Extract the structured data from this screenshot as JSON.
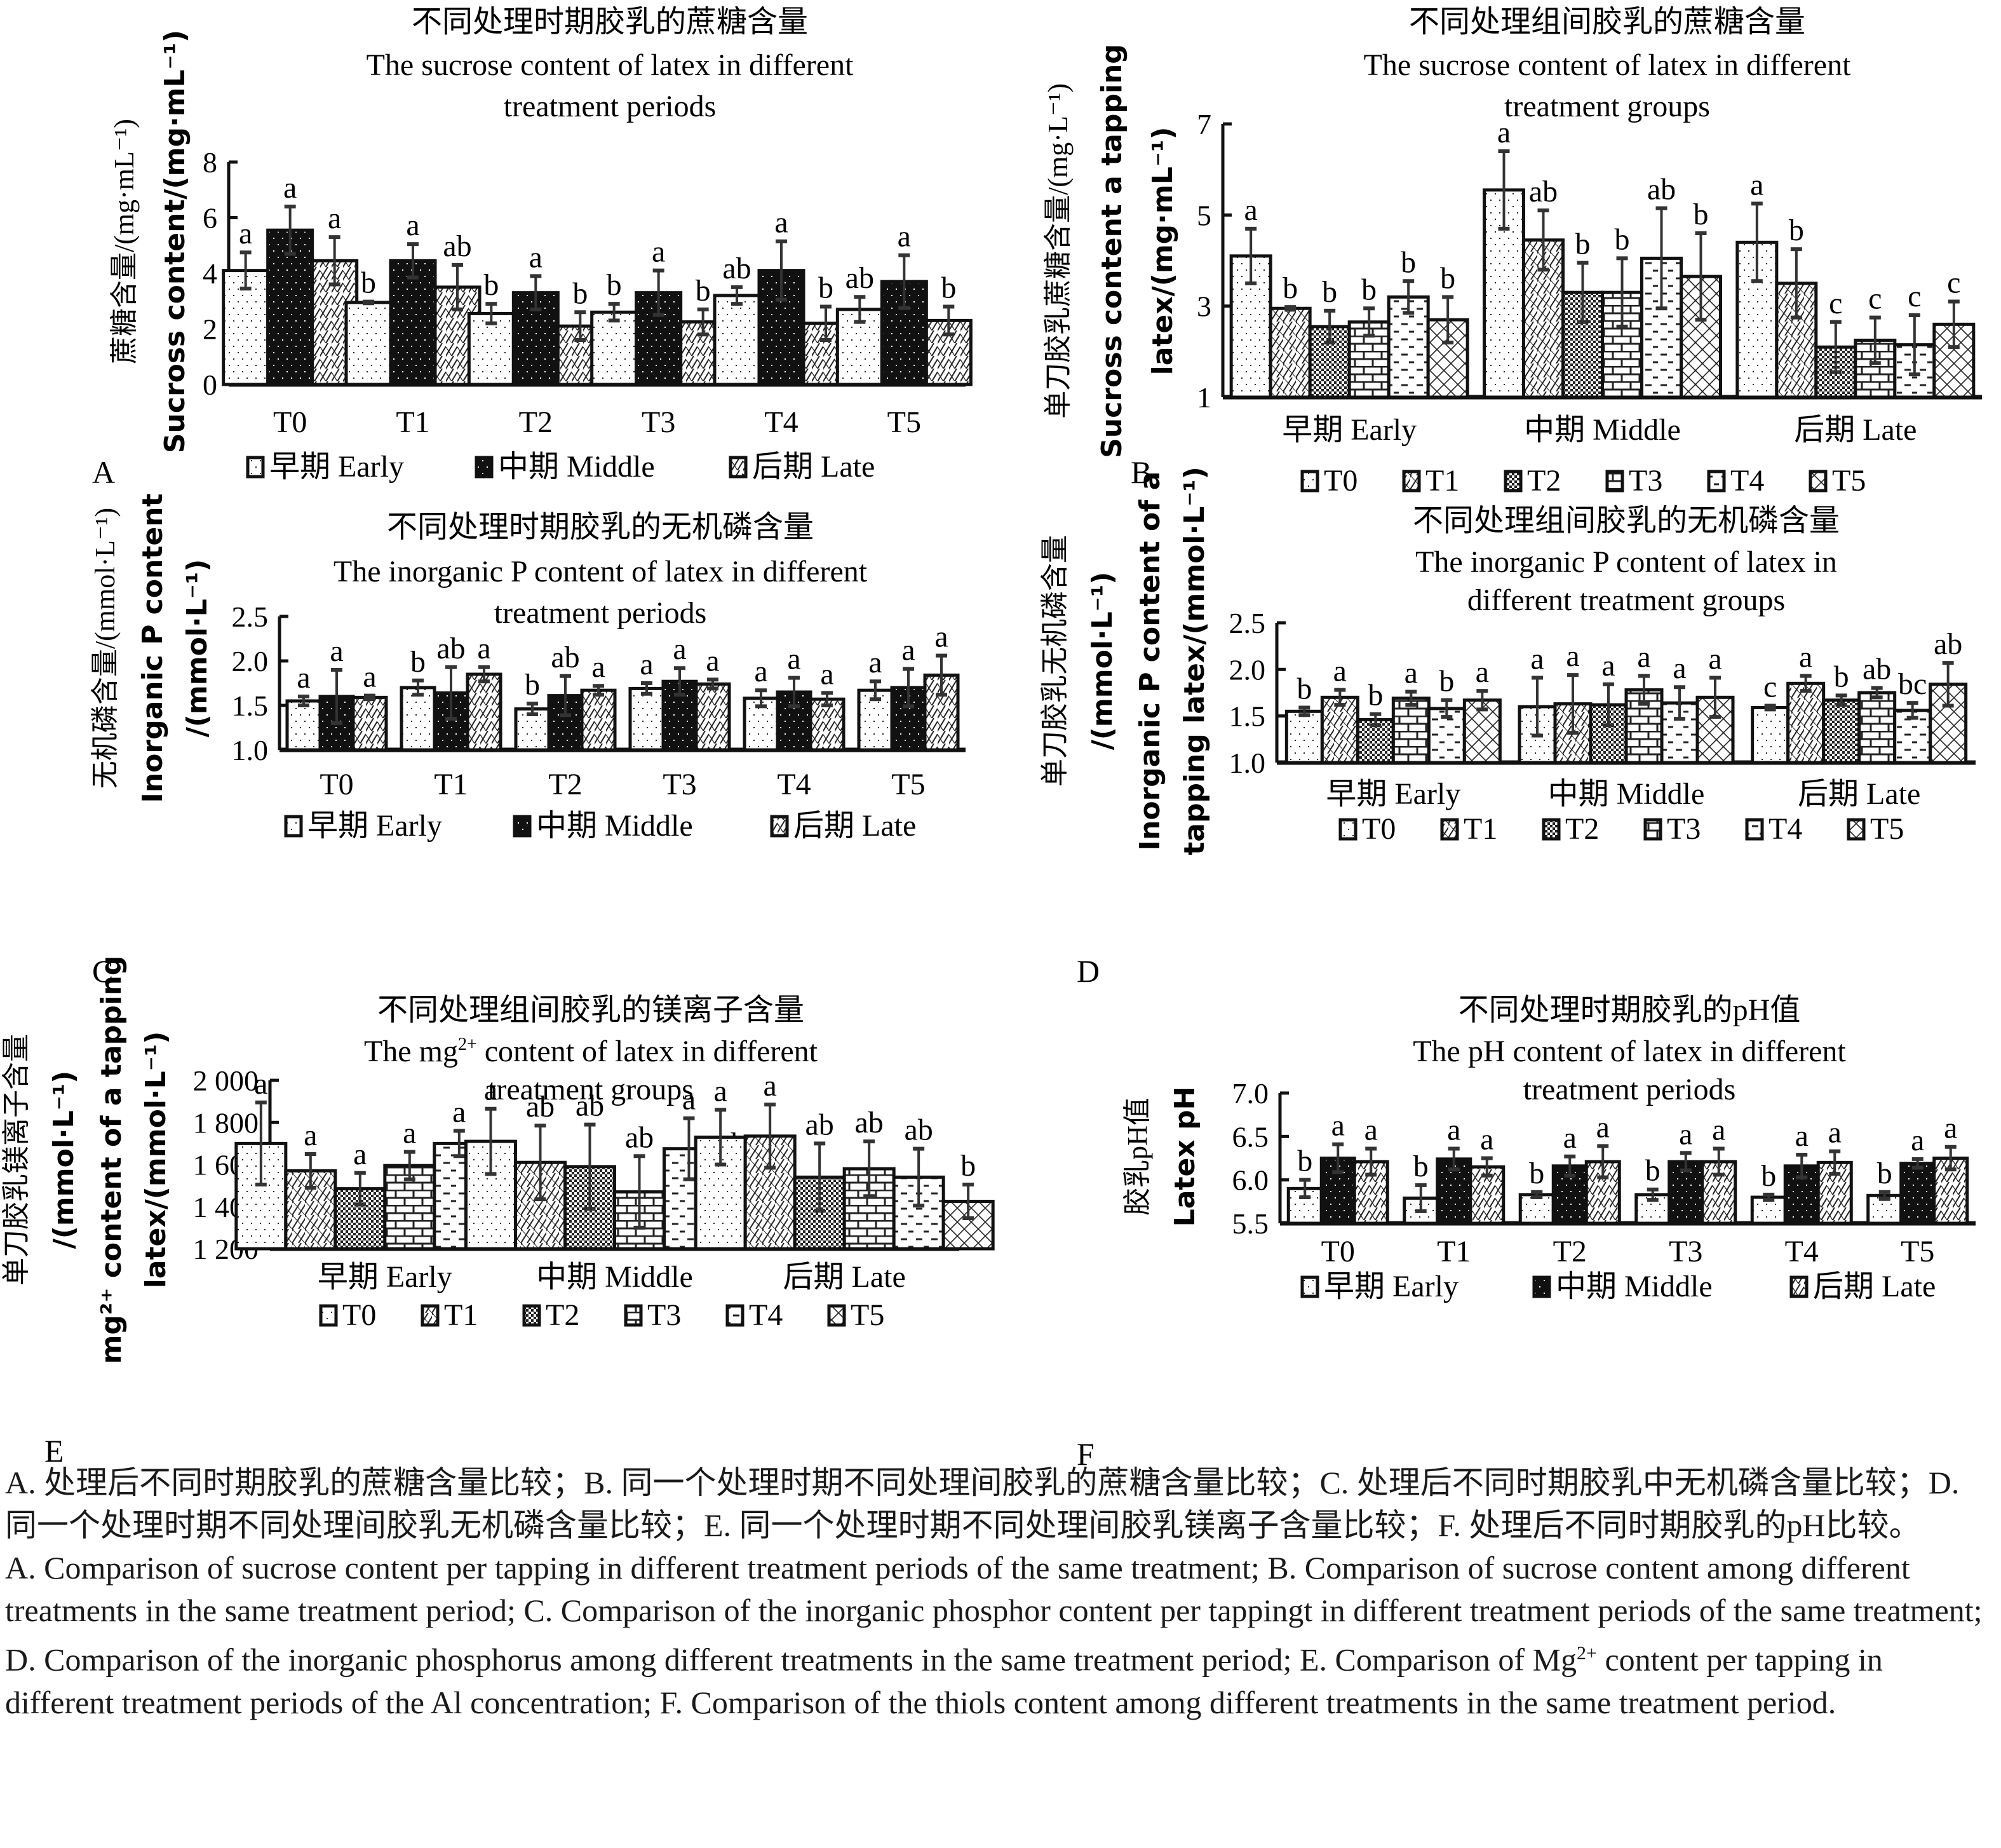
{
  "figure": {
    "legend_periods": [
      "早期 Early",
      "中期 Middle",
      "后期 Late"
    ],
    "legend_treatments": [
      "T0",
      "T1",
      "T2",
      "T3",
      "T4",
      "T5"
    ],
    "period_patterns": [
      "dots-light",
      "dots-dark",
      "diagonal-hatch"
    ],
    "treatment_patterns": [
      "dots",
      "diagonal-lattice",
      "checker",
      "brick",
      "dash",
      "crosshatch"
    ]
  },
  "chart_data": [
    {
      "id": "A",
      "panel_label": "A",
      "type": "bar",
      "grouping": "by-treatment",
      "title_zh": "不同处理时期胶乳的蔗糖含量",
      "title_en": [
        "The sucrose content of latex in different",
        "treatment periods"
      ],
      "ylabel": [
        "蔗糖含量/(mg·mL⁻¹)",
        "Sucross content/(mg·mL⁻¹)"
      ],
      "categories": [
        "T0",
        "T1",
        "T2",
        "T3",
        "T4",
        "T5"
      ],
      "ylim": [
        0,
        8
      ],
      "yticks": [
        0,
        2,
        4,
        6,
        8
      ],
      "ytick_labels": [
        "0",
        "2",
        "4",
        "6",
        "8"
      ],
      "series": [
        {
          "name": "早期 Early",
          "values": [
            4.1,
            2.95,
            2.55,
            2.6,
            3.2,
            2.7
          ],
          "errors": [
            0.65,
            0.03,
            0.35,
            0.3,
            0.3,
            0.45
          ],
          "letters": [
            "a",
            "b",
            "b",
            "b",
            "ab",
            "ab"
          ]
        },
        {
          "name": "中期 Middle",
          "values": [
            5.55,
            4.45,
            3.3,
            3.3,
            4.1,
            3.7
          ],
          "errors": [
            0.85,
            0.6,
            0.6,
            0.8,
            1.05,
            0.95
          ],
          "letters": [
            "a",
            "a",
            "a",
            "a",
            "a",
            "a"
          ]
        },
        {
          "name": "后期 Late",
          "values": [
            4.45,
            3.5,
            2.1,
            2.25,
            2.2,
            2.3
          ],
          "errors": [
            0.85,
            0.8,
            0.5,
            0.45,
            0.6,
            0.5
          ],
          "letters": [
            "a",
            "ab",
            "b",
            "b",
            "b",
            "b"
          ]
        }
      ],
      "legend": [
        "早期 Early",
        "中期 Middle",
        "后期 Late"
      ],
      "legend_placement": "bottom",
      "grid": false
    },
    {
      "id": "B",
      "panel_label": "B",
      "type": "bar",
      "grouping": "by-period",
      "title_zh": "不同处理组间胶乳的蔗糖含量",
      "title_en": [
        "The sucrose content of latex in different",
        "treatment groups"
      ],
      "ylabel": [
        "单刀胶乳蔗糖含量/(mg·L⁻¹)",
        "Sucross content a tapping",
        "latex/(mg·mL⁻¹)"
      ],
      "categories": [
        "早期 Early",
        "中期 Middle",
        "后期 Late"
      ],
      "ylim": [
        1,
        7
      ],
      "yticks": [
        1,
        3,
        5,
        7
      ],
      "ytick_labels": [
        "1",
        "3",
        "5",
        "7"
      ],
      "series": [
        {
          "name": "T0",
          "values": [
            4.1,
            5.55,
            4.4
          ],
          "errors": [
            0.6,
            0.85,
            0.85
          ],
          "letters": [
            "a",
            "a",
            "a"
          ]
        },
        {
          "name": "T1",
          "values": [
            2.95,
            4.45,
            3.5
          ],
          "errors": [
            0.03,
            0.65,
            0.75
          ],
          "letters": [
            "b",
            "ab",
            "b"
          ]
        },
        {
          "name": "T2",
          "values": [
            2.55,
            3.3,
            2.1
          ],
          "errors": [
            0.35,
            0.65,
            0.55
          ],
          "letters": [
            "b",
            "b",
            "c"
          ]
        },
        {
          "name": "T3",
          "values": [
            2.65,
            3.3,
            2.25
          ],
          "errors": [
            0.3,
            0.75,
            0.5
          ],
          "letters": [
            "b",
            "b",
            "c"
          ]
        },
        {
          "name": "T4",
          "values": [
            3.2,
            4.05,
            2.15
          ],
          "errors": [
            0.35,
            1.1,
            0.65
          ],
          "letters": [
            "b",
            "ab",
            "c"
          ]
        },
        {
          "name": "T5",
          "values": [
            2.7,
            3.65,
            2.6
          ],
          "errors": [
            0.5,
            0.95,
            0.5
          ],
          "letters": [
            "b",
            "b",
            "c"
          ]
        }
      ],
      "legend": [
        "T0",
        "T1",
        "T2",
        "T3",
        "T4",
        "T5"
      ],
      "legend_placement": "bottom",
      "grid": false
    },
    {
      "id": "C",
      "panel_label": "C",
      "type": "bar",
      "grouping": "by-treatment",
      "title_zh": "不同处理时期胶乳的无机磷含量",
      "title_en": [
        "The inorganic P content of latex in different",
        "treatment periods"
      ],
      "ylabel": [
        "无机磷含量/(mmol·L⁻¹)",
        "Inorganic P content",
        "/(mmol·L⁻¹)"
      ],
      "categories": [
        "T0",
        "T1",
        "T2",
        "T3",
        "T4",
        "T5"
      ],
      "ylim": [
        1.0,
        2.5
      ],
      "yticks": [
        1.0,
        1.5,
        2.0,
        2.5
      ],
      "ytick_labels": [
        "1.0",
        "1.5",
        "2.0",
        "2.5"
      ],
      "series": [
        {
          "name": "早期 Early",
          "values": [
            1.55,
            1.7,
            1.46,
            1.69,
            1.58,
            1.67
          ],
          "errors": [
            0.05,
            0.08,
            0.06,
            0.06,
            0.09,
            0.1
          ],
          "letters": [
            "a",
            "b",
            "b",
            "a",
            "a",
            "a"
          ]
        },
        {
          "name": "中期 Middle",
          "values": [
            1.6,
            1.64,
            1.61,
            1.77,
            1.65,
            1.7
          ],
          "errors": [
            0.3,
            0.29,
            0.22,
            0.15,
            0.16,
            0.21
          ],
          "letters": [
            "a",
            "ab",
            "ab",
            "a",
            "a",
            "a"
          ]
        },
        {
          "name": "后期 Late",
          "values": [
            1.59,
            1.85,
            1.67,
            1.74,
            1.57,
            1.84
          ],
          "errors": [
            0.02,
            0.08,
            0.05,
            0.05,
            0.07,
            0.22
          ],
          "letters": [
            "a",
            "a",
            "a",
            "a",
            "a",
            "a"
          ]
        }
      ],
      "legend": [
        "早期 Early",
        "中期 Middle",
        "后期 Late"
      ],
      "legend_placement": "bottom",
      "grid": false
    },
    {
      "id": "D",
      "panel_label": "D",
      "type": "bar",
      "grouping": "by-period",
      "title_zh": "不同处理组间胶乳的无机磷含量",
      "title_en": [
        "The inorganic P content of latex in",
        "different treatment groups"
      ],
      "ylabel": [
        "单刀胶乳无机磷含量",
        "/(mmol·L⁻¹)",
        "Inorganic P content of a",
        "tapping latex/(mmol·L⁻¹)"
      ],
      "categories": [
        "早期 Early",
        "中期 Middle",
        "后期 Late"
      ],
      "ylim": [
        1.0,
        2.5
      ],
      "yticks": [
        1.0,
        1.5,
        2.0,
        2.5
      ],
      "ytick_labels": [
        "1.0",
        "1.5",
        "2.0",
        "2.5"
      ],
      "series": [
        {
          "name": "T0",
          "values": [
            1.55,
            1.6,
            1.59
          ],
          "errors": [
            0.04,
            0.31,
            0.02
          ],
          "letters": [
            "b",
            "a",
            "c"
          ]
        },
        {
          "name": "T1",
          "values": [
            1.7,
            1.63,
            1.85
          ],
          "errors": [
            0.08,
            0.31,
            0.08
          ],
          "letters": [
            "a",
            "a",
            "a"
          ]
        },
        {
          "name": "T2",
          "values": [
            1.46,
            1.62,
            1.67
          ],
          "errors": [
            0.06,
            0.22,
            0.05
          ],
          "letters": [
            "b",
            "a",
            "b"
          ]
        },
        {
          "name": "T3",
          "values": [
            1.69,
            1.78,
            1.75
          ],
          "errors": [
            0.07,
            0.15,
            0.05
          ],
          "letters": [
            "a",
            "a",
            "ab"
          ]
        },
        {
          "name": "T4",
          "values": [
            1.58,
            1.64,
            1.56
          ],
          "errors": [
            0.09,
            0.17,
            0.08
          ],
          "letters": [
            "b",
            "a",
            "bc"
          ]
        },
        {
          "name": "T5",
          "values": [
            1.67,
            1.7,
            1.84
          ],
          "errors": [
            0.1,
            0.21,
            0.23
          ],
          "letters": [
            "a",
            "a",
            "ab"
          ]
        }
      ],
      "legend": [
        "T0",
        "T1",
        "T2",
        "T3",
        "T4",
        "T5"
      ],
      "legend_placement": "bottom",
      "grid": false
    },
    {
      "id": "E",
      "panel_label": "E",
      "type": "bar",
      "grouping": "by-period",
      "title_zh": "不同处理组间胶乳的镁离子含量",
      "title_en_pre": "The mg",
      "title_en_sup": "2+",
      "title_en_post": " content of latex in different",
      "title_en": [
        "The mg2+ content of latex in different",
        "treatment groups"
      ],
      "ylabel": [
        "单刀胶乳镁离子含量",
        "/(mmol·L⁻¹)",
        "mg²⁺ content of a tapping",
        "latex/(mmol·L⁻¹)"
      ],
      "categories": [
        "早期 Early",
        "中期 Middle",
        "后期 Late"
      ],
      "ylim": [
        1200,
        2000
      ],
      "yticks": [
        1200,
        1400,
        1600,
        1800,
        2000
      ],
      "ytick_labels": [
        "1 200",
        "1 400",
        "1 600",
        "1 800",
        "2 000"
      ],
      "series": [
        {
          "name": "T0",
          "values": [
            1700,
            1710,
            1730
          ],
          "errors": [
            195,
            155,
            130
          ],
          "letters": [
            "a",
            "a",
            "a"
          ]
        },
        {
          "name": "T1",
          "values": [
            1570,
            1610,
            1735
          ],
          "errors": [
            80,
            175,
            150
          ],
          "letters": [
            "a",
            "ab",
            "a"
          ]
        },
        {
          "name": "T2",
          "values": [
            1485,
            1590,
            1540
          ],
          "errors": [
            75,
            200,
            160
          ],
          "letters": [
            "a",
            "ab",
            "ab"
          ]
        },
        {
          "name": "T3",
          "values": [
            1595,
            1470,
            1580
          ],
          "errors": [
            65,
            170,
            130
          ],
          "letters": [
            "a",
            "ab",
            "ab"
          ]
        },
        {
          "name": "T4",
          "values": [
            1700,
            1675,
            1540
          ],
          "errors": [
            60,
            145,
            135
          ],
          "letters": [
            "a",
            "a",
            "ab"
          ]
        },
        {
          "name": "T5",
          "values": [
            1515,
            1485,
            1425
          ],
          "errors": [
            45,
            125,
            80
          ],
          "letters": [
            "a",
            "b",
            "b"
          ]
        }
      ],
      "legend": [
        "T0",
        "T1",
        "T2",
        "T3",
        "T4",
        "T5"
      ],
      "legend_placement": "bottom",
      "grid": false
    },
    {
      "id": "F",
      "panel_label": "F",
      "type": "bar",
      "grouping": "by-treatment",
      "title_zh": "不同处理时期胶乳的pH值",
      "title_en": [
        "The pH content of latex in different",
        "treatment periods"
      ],
      "ylabel": [
        "胶乳pH值",
        "Latex pH"
      ],
      "categories": [
        "T0",
        "T1",
        "T2",
        "T3",
        "T4",
        "T5"
      ],
      "ylim": [
        5.5,
        7.0
      ],
      "yticks": [
        5.5,
        6.0,
        6.5,
        7.0
      ],
      "ytick_labels": [
        "5.5",
        "6.0",
        "6.5",
        "7.0"
      ],
      "series": [
        {
          "name": "早期 Early",
          "values": [
            5.9,
            5.79,
            5.83,
            5.83,
            5.8,
            5.82
          ],
          "errors": [
            0.1,
            0.15,
            0.03,
            0.06,
            0.03,
            0.04
          ],
          "letters": [
            "b",
            "b",
            "b",
            "b",
            "b",
            "b"
          ]
        },
        {
          "name": "中期 Middle",
          "values": [
            6.25,
            6.24,
            6.16,
            6.21,
            6.16,
            6.19
          ],
          "errors": [
            0.16,
            0.12,
            0.11,
            0.1,
            0.13,
            0.05
          ],
          "letters": [
            "a",
            "a",
            "a",
            "a",
            "a",
            "a"
          ]
        },
        {
          "name": "后期 Late",
          "values": [
            6.21,
            6.15,
            6.21,
            6.21,
            6.2,
            6.25
          ],
          "errors": [
            0.15,
            0.1,
            0.18,
            0.15,
            0.13,
            0.13
          ],
          "letters": [
            "a",
            "a",
            "a",
            "a",
            "a",
            "a"
          ]
        }
      ],
      "legend": [
        "早期 Early",
        "中期 Middle",
        "后期 Late"
      ],
      "legend_placement": "bottom",
      "grid": false
    }
  ],
  "caption": {
    "zh": "A. 处理后不同时期胶乳的蔗糖含量比较；B. 同一个处理时期不同处理间胶乳的蔗糖含量比较；C. 处理后不同时期胶乳中无机磷含量比较；D. 同一个处理时期不同处理间胶乳无机磷含量比较；E. 同一个处理时期不同处理间胶乳镁离子含量比较；F. 处理后不同时期胶乳的pH比较。",
    "en_part1": "A. Comparison of sucrose content per tapping in different treatment periods of the same treatment; B. Comparison of sucrose content among different treatments in the same treatment period; C. Comparison of the inorganic phosphor content per tappingt in different treatment periods of the same treatment; D. Comparison of the inorganic phosphorus among different treatments in the same treatment period; E. Comparison of Mg",
    "en_sup": "2+",
    "en_part2": " content per tapping in different treatment periods of the Al concentration; F. Comparison of the thiols content among different treatments in the same treatment period."
  }
}
